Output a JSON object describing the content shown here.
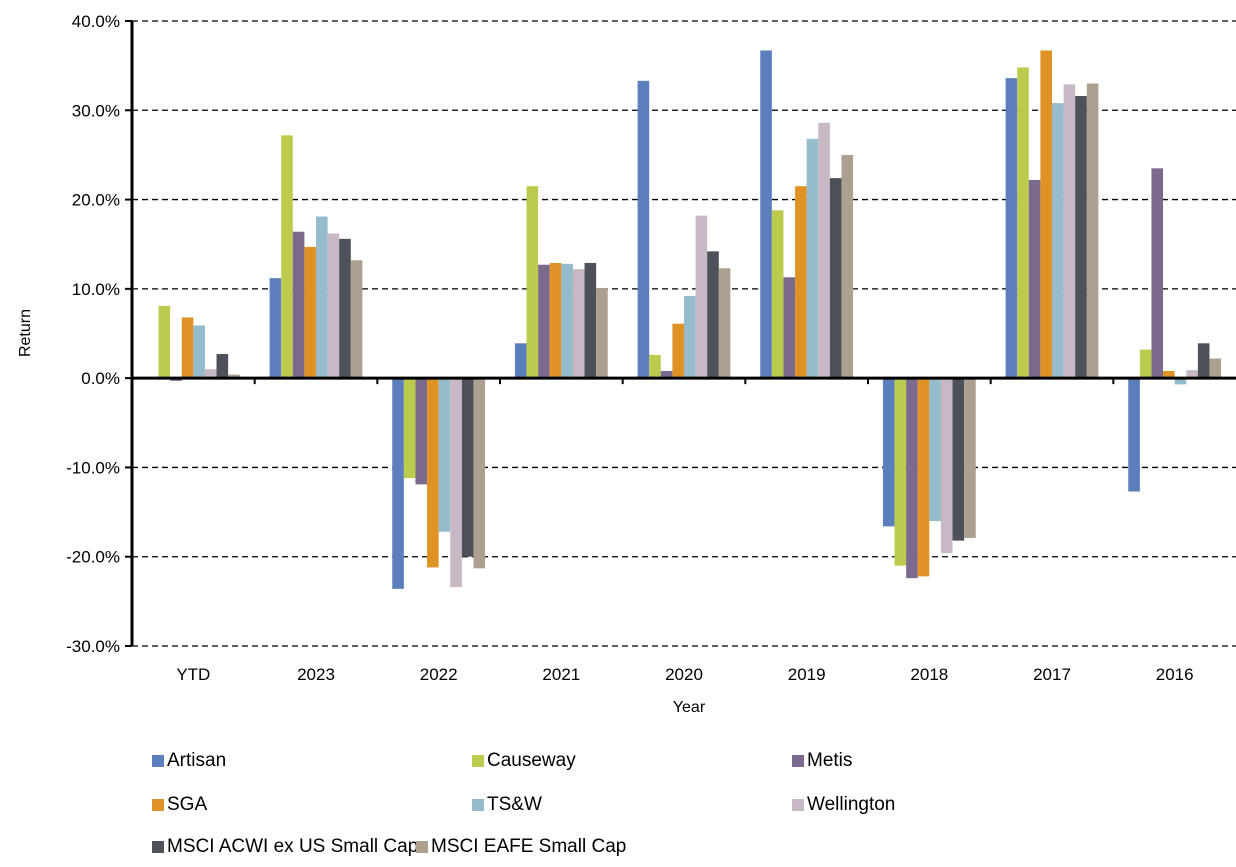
{
  "chart_data": {
    "type": "bar",
    "title": "",
    "xlabel": "Year",
    "ylabel": "Return",
    "ylim": [
      -30,
      40
    ],
    "yticks": [
      -30,
      -20,
      -10,
      0,
      10,
      20,
      30,
      40
    ],
    "ytick_labels": [
      "-30.0%",
      "-20.0%",
      "-10.0%",
      "0.0%",
      "10.0%",
      "20.0%",
      "30.0%",
      "40.0%"
    ],
    "grid": "horizontal dashed",
    "legend_position": "bottom",
    "categories": [
      "YTD",
      "2023",
      "2022",
      "2021",
      "2020",
      "2019",
      "2018",
      "2017",
      "2016"
    ],
    "series": [
      {
        "name": "Artisan",
        "color": "#5b7fbd",
        "values": [
          0.0,
          11.2,
          -23.6,
          3.9,
          33.3,
          36.7,
          -16.6,
          33.6,
          -12.7
        ]
      },
      {
        "name": "Causeway",
        "color": "#bccb4e",
        "values": [
          8.1,
          27.2,
          -11.2,
          21.5,
          2.6,
          18.8,
          -21.0,
          34.8,
          3.2
        ]
      },
      {
        "name": "Metis",
        "color": "#7b6a8e",
        "values": [
          -0.3,
          16.4,
          -11.9,
          12.7,
          0.8,
          11.3,
          -22.4,
          22.2,
          23.5
        ]
      },
      {
        "name": "SGA",
        "color": "#df9325",
        "values": [
          6.8,
          14.7,
          -21.2,
          12.9,
          6.1,
          21.5,
          -22.2,
          36.7,
          0.8
        ]
      },
      {
        "name": "TS&W",
        "color": "#94bccc",
        "values": [
          5.9,
          18.1,
          -17.2,
          12.8,
          9.2,
          26.8,
          -16.0,
          30.8,
          -0.7
        ]
      },
      {
        "name": "Wellington",
        "color": "#c8b8c6",
        "values": [
          1.0,
          16.2,
          -23.4,
          12.2,
          18.2,
          28.6,
          -19.6,
          32.9,
          0.9
        ]
      },
      {
        "name": "MSCI ACWI ex US Small Cap",
        "color": "#4d5159",
        "values": [
          2.7,
          15.6,
          -20.0,
          12.9,
          14.2,
          22.4,
          -18.2,
          31.6,
          3.9
        ]
      },
      {
        "name": "MSCI EAFE Small Cap",
        "color": "#ada090",
        "values": [
          0.4,
          13.2,
          -21.3,
          10.1,
          12.3,
          25.0,
          -17.9,
          33.0,
          2.2
        ]
      }
    ]
  }
}
